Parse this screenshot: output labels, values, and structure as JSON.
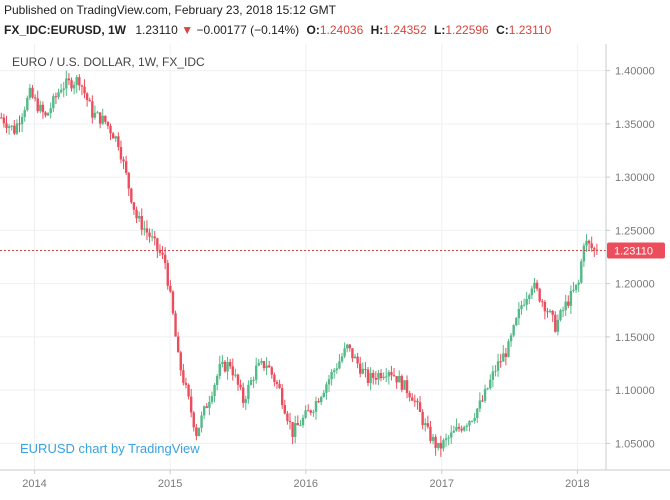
{
  "header": {
    "published": "Published on TradingView.com, February 23, 2018 15:12 GMT",
    "symbol": "FX_IDC:EURUSD, 1W",
    "last": "1.23110",
    "change_arrow": "▼",
    "change": "−0.00177 (−0.14%)",
    "o_label": "O:",
    "o_value": "1.24036",
    "h_label": "H:",
    "h_value": "1.24352",
    "l_label": "L:",
    "l_value": "1.22596",
    "c_label": "C:",
    "c_value": "1.23110"
  },
  "colors": {
    "up": "#53b987",
    "down": "#eb4d5c",
    "grid": "#eef0f2",
    "axis": "#7a7a7a",
    "price_line": "#d64545",
    "watermark": "#3aa1e0"
  },
  "chart_data": {
    "type": "candlestick",
    "title": "EURO / U.S. DOLLAR, 1W, FX_IDC",
    "watermark": "EURUSD chart by TradingView",
    "xlabel": "",
    "ylabel": "",
    "x_ticks": [
      "2014",
      "2015",
      "2016",
      "2017",
      "2018"
    ],
    "y_ticks": [
      "1.40000",
      "1.35000",
      "1.30000",
      "1.25000",
      "1.20000",
      "1.15000",
      "1.10000",
      "1.05000"
    ],
    "ylim": [
      1.025,
      1.425
    ],
    "x_range": [
      "2013-09-30",
      "2018-03-19"
    ],
    "last_price": 1.2311,
    "last_price_label": "1.23110",
    "grid": true,
    "anchors": [
      [
        "2013-10-07",
        1.356
      ],
      [
        "2013-11-11",
        1.344
      ],
      [
        "2013-12-23",
        1.378
      ],
      [
        "2014-02-03",
        1.356
      ],
      [
        "2014-03-17",
        1.385
      ],
      [
        "2014-05-05",
        1.392
      ],
      [
        "2014-06-09",
        1.36
      ],
      [
        "2014-07-14",
        1.352
      ],
      [
        "2014-08-18",
        1.333
      ],
      [
        "2014-09-15",
        1.291
      ],
      [
        "2014-10-06",
        1.262
      ],
      [
        "2014-11-10",
        1.245
      ],
      [
        "2014-12-22",
        1.22
      ],
      [
        "2015-01-12",
        1.17
      ],
      [
        "2015-01-26",
        1.13
      ],
      [
        "2015-03-16",
        1.06
      ],
      [
        "2015-04-27",
        1.1
      ],
      [
        "2015-05-18",
        1.12
      ],
      [
        "2015-06-15",
        1.125
      ],
      [
        "2015-07-20",
        1.09
      ],
      [
        "2015-08-24",
        1.12
      ],
      [
        "2015-09-21",
        1.125
      ],
      [
        "2015-10-26",
        1.1
      ],
      [
        "2015-11-30",
        1.06
      ],
      [
        "2016-01-25",
        1.085
      ],
      [
        "2016-03-14",
        1.115
      ],
      [
        "2016-04-25",
        1.14
      ],
      [
        "2016-06-20",
        1.11
      ],
      [
        "2016-08-15",
        1.12
      ],
      [
        "2016-10-17",
        1.095
      ],
      [
        "2016-11-28",
        1.06
      ],
      [
        "2016-12-26",
        1.045
      ],
      [
        "2017-02-13",
        1.062
      ],
      [
        "2017-03-27",
        1.075
      ],
      [
        "2017-04-24",
        1.09
      ],
      [
        "2017-05-29",
        1.12
      ],
      [
        "2017-07-03",
        1.14
      ],
      [
        "2017-08-07",
        1.18
      ],
      [
        "2017-09-04",
        1.2
      ],
      [
        "2017-10-09",
        1.18
      ],
      [
        "2017-11-06",
        1.16
      ],
      [
        "2017-12-04",
        1.18
      ],
      [
        "2018-01-08",
        1.2
      ],
      [
        "2018-01-22",
        1.24
      ],
      [
        "2018-02-19",
        1.231
      ]
    ]
  }
}
